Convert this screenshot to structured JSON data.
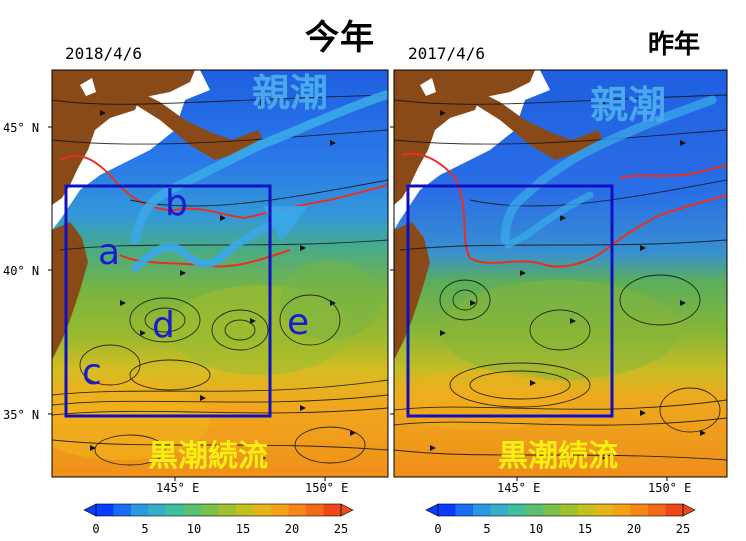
{
  "left_panel": {
    "heading": "今年",
    "date": "2018/4/6",
    "labels": {
      "oyashio": "親潮",
      "kuroshio_ext": "黒潮続流",
      "a": "a",
      "b": "b",
      "c": "c",
      "d": "d",
      "e": "e"
    }
  },
  "right_panel": {
    "heading": "昨年",
    "date": "2017/4/6",
    "labels": {
      "oyashio": "親潮",
      "kuroshio_ext": "黒潮続流"
    }
  },
  "axes": {
    "lat_ticks": [
      "45° N",
      "40° N",
      "35° N"
    ],
    "lon_ticks": [
      "145° E",
      "150° E"
    ]
  },
  "colorbar": {
    "ticks": [
      "0",
      "5",
      "10",
      "15",
      "20",
      "25"
    ],
    "colors": [
      "#0a3cff",
      "#1a6cf0",
      "#2a9ae0",
      "#36b0c8",
      "#3ec0a0",
      "#58c070",
      "#7cc048",
      "#a0c030",
      "#c4c020",
      "#e4b418",
      "#f4a018",
      "#f48618",
      "#f46a18",
      "#ef4818"
    ]
  }
}
